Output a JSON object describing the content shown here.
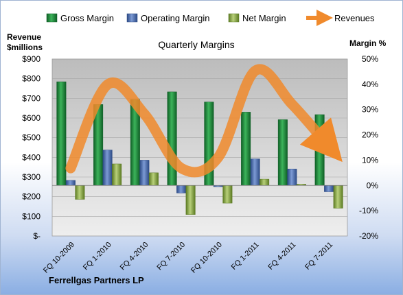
{
  "chart_data": {
    "type": "bar",
    "title": "Quarterly Margins",
    "company": "Ferrellgas Partners LP",
    "ylabel_left": [
      "Revenue",
      "$millions"
    ],
    "ylabel_right": "Margin %",
    "categories": [
      "FQ 10-2009",
      "FQ 1-2010",
      "FQ 4-2010",
      "FQ 7-2010",
      "FQ 10-2010",
      "FQ 1-2011",
      "FQ 4-2011",
      "FQ 7-2011"
    ],
    "left_axis": {
      "min": 0,
      "max": 900,
      "ticks": [
        "$-",
        "$100",
        "$200",
        "$300",
        "$400",
        "$500",
        "$600",
        "$700",
        "$800",
        "$900"
      ]
    },
    "right_axis": {
      "min": -20,
      "max": 50,
      "ticks": [
        "-20%",
        "-10%",
        "0%",
        "10%",
        "20%",
        "30%",
        "40%",
        "50%"
      ]
    },
    "legend_position": "top",
    "series": [
      {
        "name": "Gross Margin",
        "axis": "right",
        "color": "#1f8a3a",
        "values": [
          41,
          32,
          34,
          37,
          33,
          29,
          26,
          28
        ]
      },
      {
        "name": "Operating Margin",
        "axis": "right",
        "color": "#4a6fb5",
        "values": [
          2,
          14,
          10,
          -3,
          -0.5,
          10.5,
          6.5,
          -2.5
        ]
      },
      {
        "name": "Net Margin",
        "axis": "right",
        "color": "#86a83c",
        "values": [
          -5.5,
          8.5,
          5,
          -11.5,
          -7,
          2.5,
          0.5,
          -9
        ]
      },
      {
        "name": "Revenues",
        "axis": "left",
        "color": "#f08a2c",
        "values": [
          345,
          770,
          620,
          345,
          400,
          840,
          670,
          455
        ]
      }
    ]
  }
}
